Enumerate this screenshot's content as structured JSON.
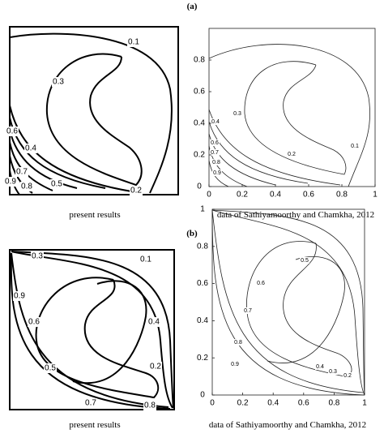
{
  "panels": [
    {
      "label": "(a)",
      "left": {
        "caption": "present results",
        "contour_labels": [
          "0.1",
          "0.3",
          "0.6",
          "0.4",
          "0.7",
          "0.9",
          "0.8",
          "0.5",
          "0.2"
        ]
      },
      "right": {
        "caption": "data of Sathiyamoorthy and Chamkha, 2012",
        "xticks": [
          "0",
          "0.2",
          "0.4",
          "0.6",
          "0.8",
          "1"
        ],
        "yticks": [
          "0",
          "0.2",
          "0.4",
          "0.6",
          "0.8"
        ],
        "contour_labels": [
          "0.3",
          "0.4",
          "0.6",
          "0.7",
          "0.8",
          "0.9",
          "0.2",
          "0.1"
        ]
      }
    },
    {
      "label": "(b)",
      "left": {
        "caption": "present results",
        "contour_labels": [
          "0.3",
          "0.1",
          "0.9",
          "0.6",
          "0.4",
          "0.5",
          "0.2",
          "0.7",
          "0.8"
        ]
      },
      "right": {
        "caption": "data of Sathiyamoorthy and Chamkha, 2012",
        "xticks": [
          "0",
          "0.2",
          "0.4",
          "0.6",
          "0.8",
          "1"
        ],
        "yticks": [
          "0",
          "0.2",
          "0.4",
          "0.6",
          "0.8",
          "1"
        ],
        "contour_labels": [
          "0.5",
          "0.6",
          "0.7",
          "0.8",
          "0.9",
          "0.4",
          "0.3",
          "0.2"
        ]
      }
    }
  ]
}
